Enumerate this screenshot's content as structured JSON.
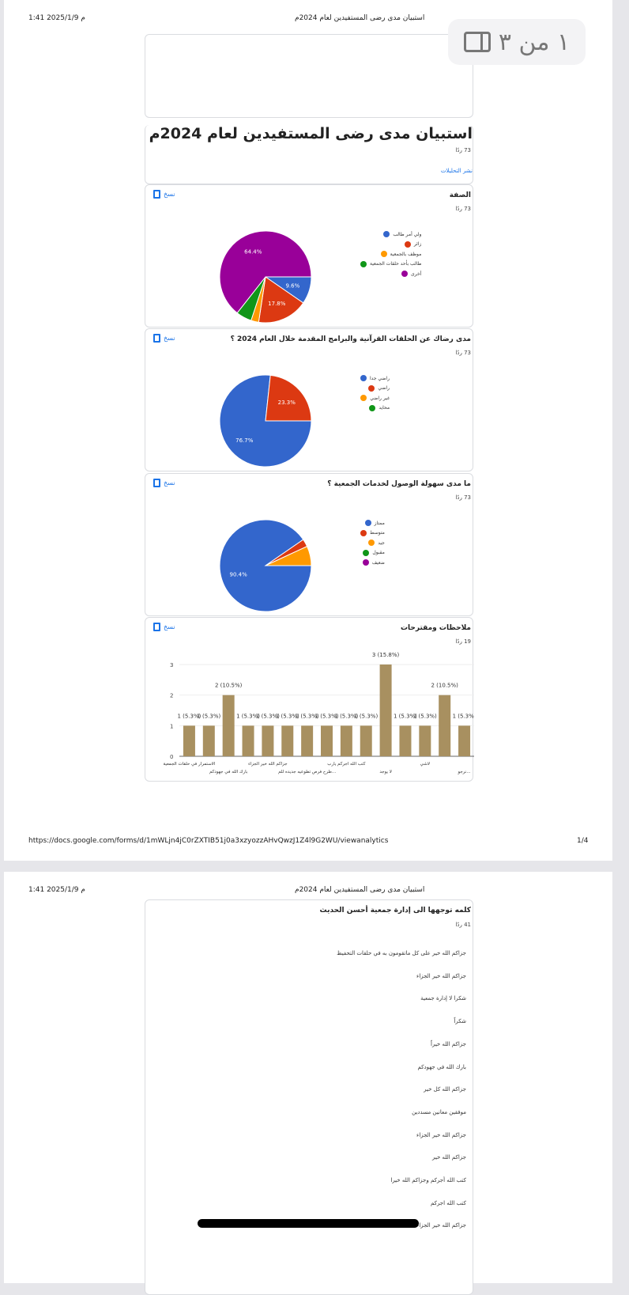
{
  "header": {
    "date": "1:41 2025/1/9 م",
    "doc_title": "استبيان مدى رضى المستفيدين لعام 2024م"
  },
  "viewer": {
    "page_indicator": "١ من ٣"
  },
  "form": {
    "title": "استبيان مدى رضى المستفيدين لعام 2024م",
    "responses": "73 ردًا",
    "publish_link": "نشر التحليلات"
  },
  "copy_label": "نسخ",
  "colors": {
    "blue": "#3366cc",
    "red": "#dc3912",
    "orange": "#ff9900",
    "green": "#109618",
    "purple": "#990099",
    "bar": "#a89060"
  },
  "chart_data": [
    {
      "type": "pie",
      "title": "الصفة",
      "responses": "73 ردًا",
      "labels": [
        "ولي أمر طالب",
        "زائر",
        "موظف بالجمعية",
        "طالب بأحد حلقات الجمعية",
        "أخرى"
      ],
      "values": [
        9.6,
        17.8,
        2.7,
        5.5,
        64.4
      ],
      "data_labels": [
        "9.6%",
        "17.8%",
        "",
        "",
        "64.4%"
      ]
    },
    {
      "type": "pie",
      "title": "مدى رضاك عن الحلقات القرآنية والبرامج المقدمة خلال العام 2024 ؟",
      "responses": "73 ردًا",
      "labels": [
        "راضي جدا",
        "راضي",
        "غير راضي",
        "محايد"
      ],
      "values": [
        76.7,
        23.3,
        0,
        0
      ],
      "data_labels": [
        "76.7%",
        "23.3%",
        "",
        ""
      ]
    },
    {
      "type": "pie",
      "title": "ما مدى سهولة الوصول لخدمات الجمعية ؟",
      "responses": "73 ردًا",
      "labels": [
        "ممتاز",
        "متوسط",
        "جيد",
        "مقبول",
        "ضعيف"
      ],
      "values": [
        90.4,
        2.7,
        6.9,
        0,
        0
      ],
      "data_labels": [
        "90.4%",
        "",
        "",
        "",
        ""
      ]
    },
    {
      "type": "bar",
      "title": "ملاحظات ومقترحات",
      "responses": "19 ردًا",
      "ylim": [
        0,
        3
      ],
      "yticks": [
        "0",
        "1",
        "2",
        "3"
      ],
      "categories": [
        "الاستمرار في حلقات الجمعية",
        "",
        "بارك الله في جهودكم",
        "",
        "جزاكم الله خير الجزاء",
        "",
        "طرح فرص تطوعيه جديده للم...",
        "",
        "كتب الله اجركم يارب",
        "",
        "لا يوجد",
        "",
        "لاشي",
        "",
        "نرجو..."
      ],
      "values": [
        1,
        1,
        2,
        1,
        1,
        1,
        1,
        1,
        1,
        1,
        3,
        1,
        1,
        2,
        1
      ],
      "data_labels": [
        "1 (5.3%)",
        "1 (5.3%)",
        "2 (10.5%)",
        "1 (5.3%)",
        "1 (5.3%)",
        "1 (5.3%)",
        "1 (5.3%)",
        "1 (5.3%)",
        "1 (5.3%)",
        "1 (5.3%)",
        "3 (15.8%)",
        "1 (5.3%)",
        "1 (5.3%)",
        "2 (10.5%)",
        "1 (5.3%)"
      ]
    }
  ],
  "page2_question": {
    "title": "كلمه توجهها الى إدارة جمعية أحسن الحديث",
    "responses": "41 ردًا",
    "answers": [
      "جزاكم الله خير على كل ماتقومون به في حلقات التحفيظ",
      "جزاكم الله خير الجزاء",
      "شكرا لا إدارة جمعية",
      "شكراً",
      "جزاكم الله خيراً",
      "بارك الله في جهودكم",
      "جزاكم الله كل خير",
      "موفقين معانين مسددين",
      "جزاكم الله خير الجزاء",
      "جزاكم الله خير",
      "كتب الله أجركم وجزاكم الله خيرا",
      "كتب الله اجركم",
      "جزاكم الله خير الجزاء"
    ]
  },
  "footer": {
    "url": "https://docs.google.com/forms/d/1mWLjn4jC0rZXTIB51j0a3xzyozzAHvQwzJ1Z4l9G2WU/viewanalytics",
    "page": "1/4"
  }
}
